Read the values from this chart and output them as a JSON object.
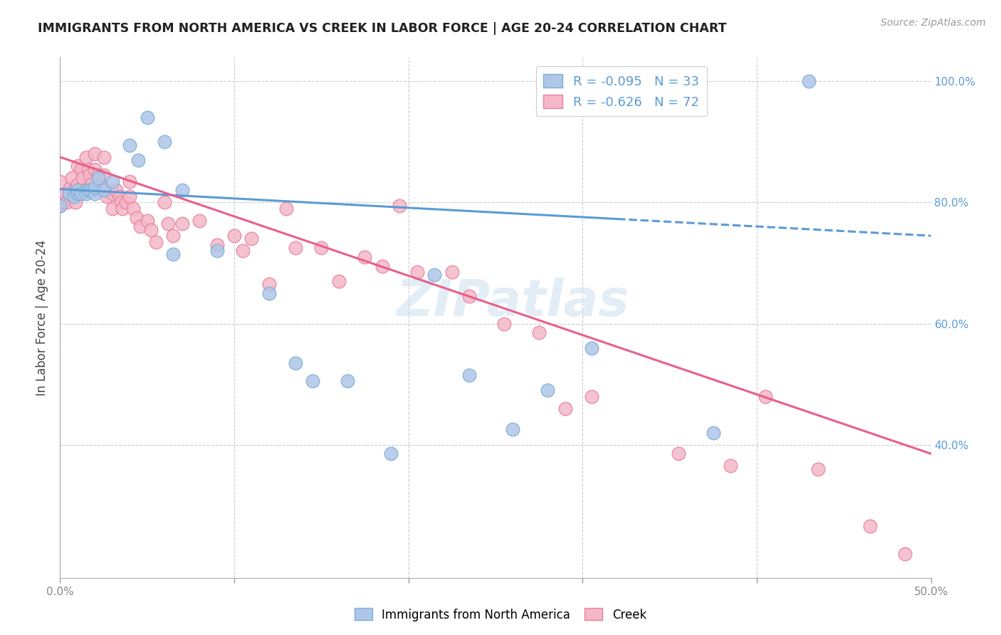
{
  "title": "IMMIGRANTS FROM NORTH AMERICA VS CREEK IN LABOR FORCE | AGE 20-24 CORRELATION CHART",
  "source": "Source: ZipAtlas.com",
  "ylabel": "In Labor Force | Age 20-24",
  "xlim": [
    0.0,
    0.5
  ],
  "ylim": [
    0.18,
    1.04
  ],
  "yticks_right": [
    0.4,
    0.6,
    0.8,
    1.0
  ],
  "ytick_labels_right": [
    "40.0%",
    "60.0%",
    "80.0%",
    "100.0%"
  ],
  "legend_r_blue": "-0.095",
  "legend_n_blue": "33",
  "legend_r_pink": "-0.626",
  "legend_n_pink": "72",
  "blue_color": "#aec6e8",
  "blue_edge": "#7bafd4",
  "blue_line_color": "#5b9bd5",
  "pink_color": "#f4b8c8",
  "pink_edge": "#e87fa0",
  "pink_line_color": "#e8608a",
  "watermark": "ZIPatlas",
  "blue_scatter_x": [
    0.0,
    0.005,
    0.008,
    0.01,
    0.01,
    0.012,
    0.015,
    0.016,
    0.018,
    0.02,
    0.02,
    0.022,
    0.025,
    0.03,
    0.04,
    0.045,
    0.05,
    0.06,
    0.065,
    0.07,
    0.09,
    0.12,
    0.135,
    0.145,
    0.165,
    0.19,
    0.215,
    0.235,
    0.26,
    0.28,
    0.305,
    0.375,
    0.43
  ],
  "blue_scatter_y": [
    0.795,
    0.815,
    0.81,
    0.815,
    0.82,
    0.815,
    0.815,
    0.82,
    0.82,
    0.815,
    0.825,
    0.84,
    0.82,
    0.835,
    0.895,
    0.87,
    0.94,
    0.9,
    0.715,
    0.82,
    0.72,
    0.65,
    0.535,
    0.505,
    0.505,
    0.385,
    0.68,
    0.515,
    0.425,
    0.49,
    0.56,
    0.42,
    1.0
  ],
  "pink_scatter_x": [
    0.0,
    0.0,
    0.002,
    0.003,
    0.004,
    0.005,
    0.006,
    0.007,
    0.008,
    0.009,
    0.01,
    0.01,
    0.012,
    0.013,
    0.014,
    0.015,
    0.016,
    0.017,
    0.018,
    0.019,
    0.02,
    0.02,
    0.022,
    0.023,
    0.025,
    0.025,
    0.027,
    0.03,
    0.03,
    0.032,
    0.034,
    0.035,
    0.036,
    0.038,
    0.04,
    0.04,
    0.042,
    0.044,
    0.046,
    0.05,
    0.052,
    0.055,
    0.06,
    0.062,
    0.065,
    0.07,
    0.08,
    0.09,
    0.1,
    0.105,
    0.11,
    0.12,
    0.13,
    0.135,
    0.15,
    0.16,
    0.175,
    0.185,
    0.195,
    0.205,
    0.225,
    0.235,
    0.255,
    0.275,
    0.29,
    0.305,
    0.355,
    0.385,
    0.405,
    0.435,
    0.465,
    0.485
  ],
  "pink_scatter_y": [
    0.835,
    0.795,
    0.8,
    0.815,
    0.8,
    0.815,
    0.825,
    0.84,
    0.82,
    0.8,
    0.86,
    0.83,
    0.855,
    0.84,
    0.82,
    0.875,
    0.855,
    0.845,
    0.83,
    0.82,
    0.88,
    0.855,
    0.845,
    0.83,
    0.875,
    0.845,
    0.81,
    0.815,
    0.79,
    0.82,
    0.81,
    0.8,
    0.79,
    0.8,
    0.835,
    0.81,
    0.79,
    0.775,
    0.76,
    0.77,
    0.755,
    0.735,
    0.8,
    0.765,
    0.745,
    0.765,
    0.77,
    0.73,
    0.745,
    0.72,
    0.74,
    0.665,
    0.79,
    0.725,
    0.725,
    0.67,
    0.71,
    0.695,
    0.795,
    0.685,
    0.685,
    0.645,
    0.6,
    0.585,
    0.46,
    0.48,
    0.385,
    0.365,
    0.48,
    0.36,
    0.265,
    0.22
  ],
  "blue_trend_x0": 0.0,
  "blue_trend_x_solid_end": 0.32,
  "blue_trend_x1": 0.5,
  "blue_trend_y0": 0.822,
  "blue_trend_y1": 0.745,
  "pink_trend_x0": 0.0,
  "pink_trend_x1": 0.5,
  "pink_trend_y0": 0.875,
  "pink_trend_y1": 0.385
}
